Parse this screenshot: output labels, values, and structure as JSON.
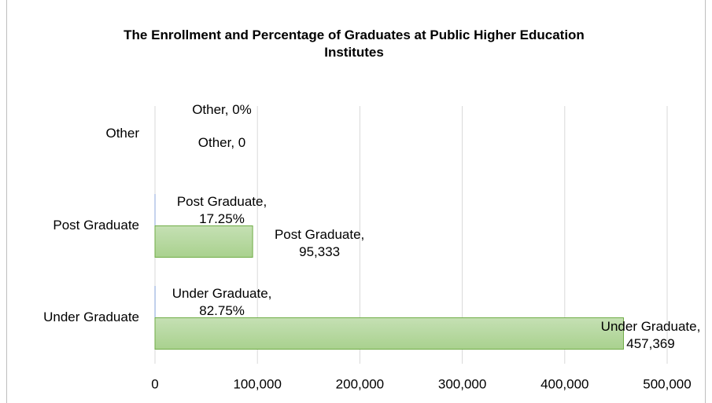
{
  "chart_data": {
    "type": "bar",
    "orientation": "horizontal",
    "title": "The Enrollment and Percentage of Graduates at Public Higher Education Institutes",
    "categories": [
      "Under Graduate",
      "Post Graduate",
      "Other"
    ],
    "series": [
      {
        "color": "#8faadc",
        "values": [
          82.75,
          17.25,
          0
        ],
        "value_labels": [
          "Under Graduate, 82.75%",
          "Post Graduate, 17.25%",
          "Other, 0%"
        ]
      },
      {
        "color": "#a9d18e",
        "values": [
          457369,
          95333,
          0
        ],
        "value_labels": [
          "Under Graduate, 457,369",
          "Post Graduate, 95,333",
          "Other, 0"
        ]
      }
    ],
    "xlim": [
      0,
      500000
    ],
    "xticks": [
      0,
      {
        "value": 100000,
        "label": "100,000"
      },
      {
        "value": 200000,
        "label": "200,000"
      },
      {
        "value": 300000,
        "label": "300,000"
      },
      {
        "value": 400000,
        "label": "400,000"
      },
      {
        "value": 500000,
        "label": "500,000"
      }
    ],
    "grid": true
  }
}
